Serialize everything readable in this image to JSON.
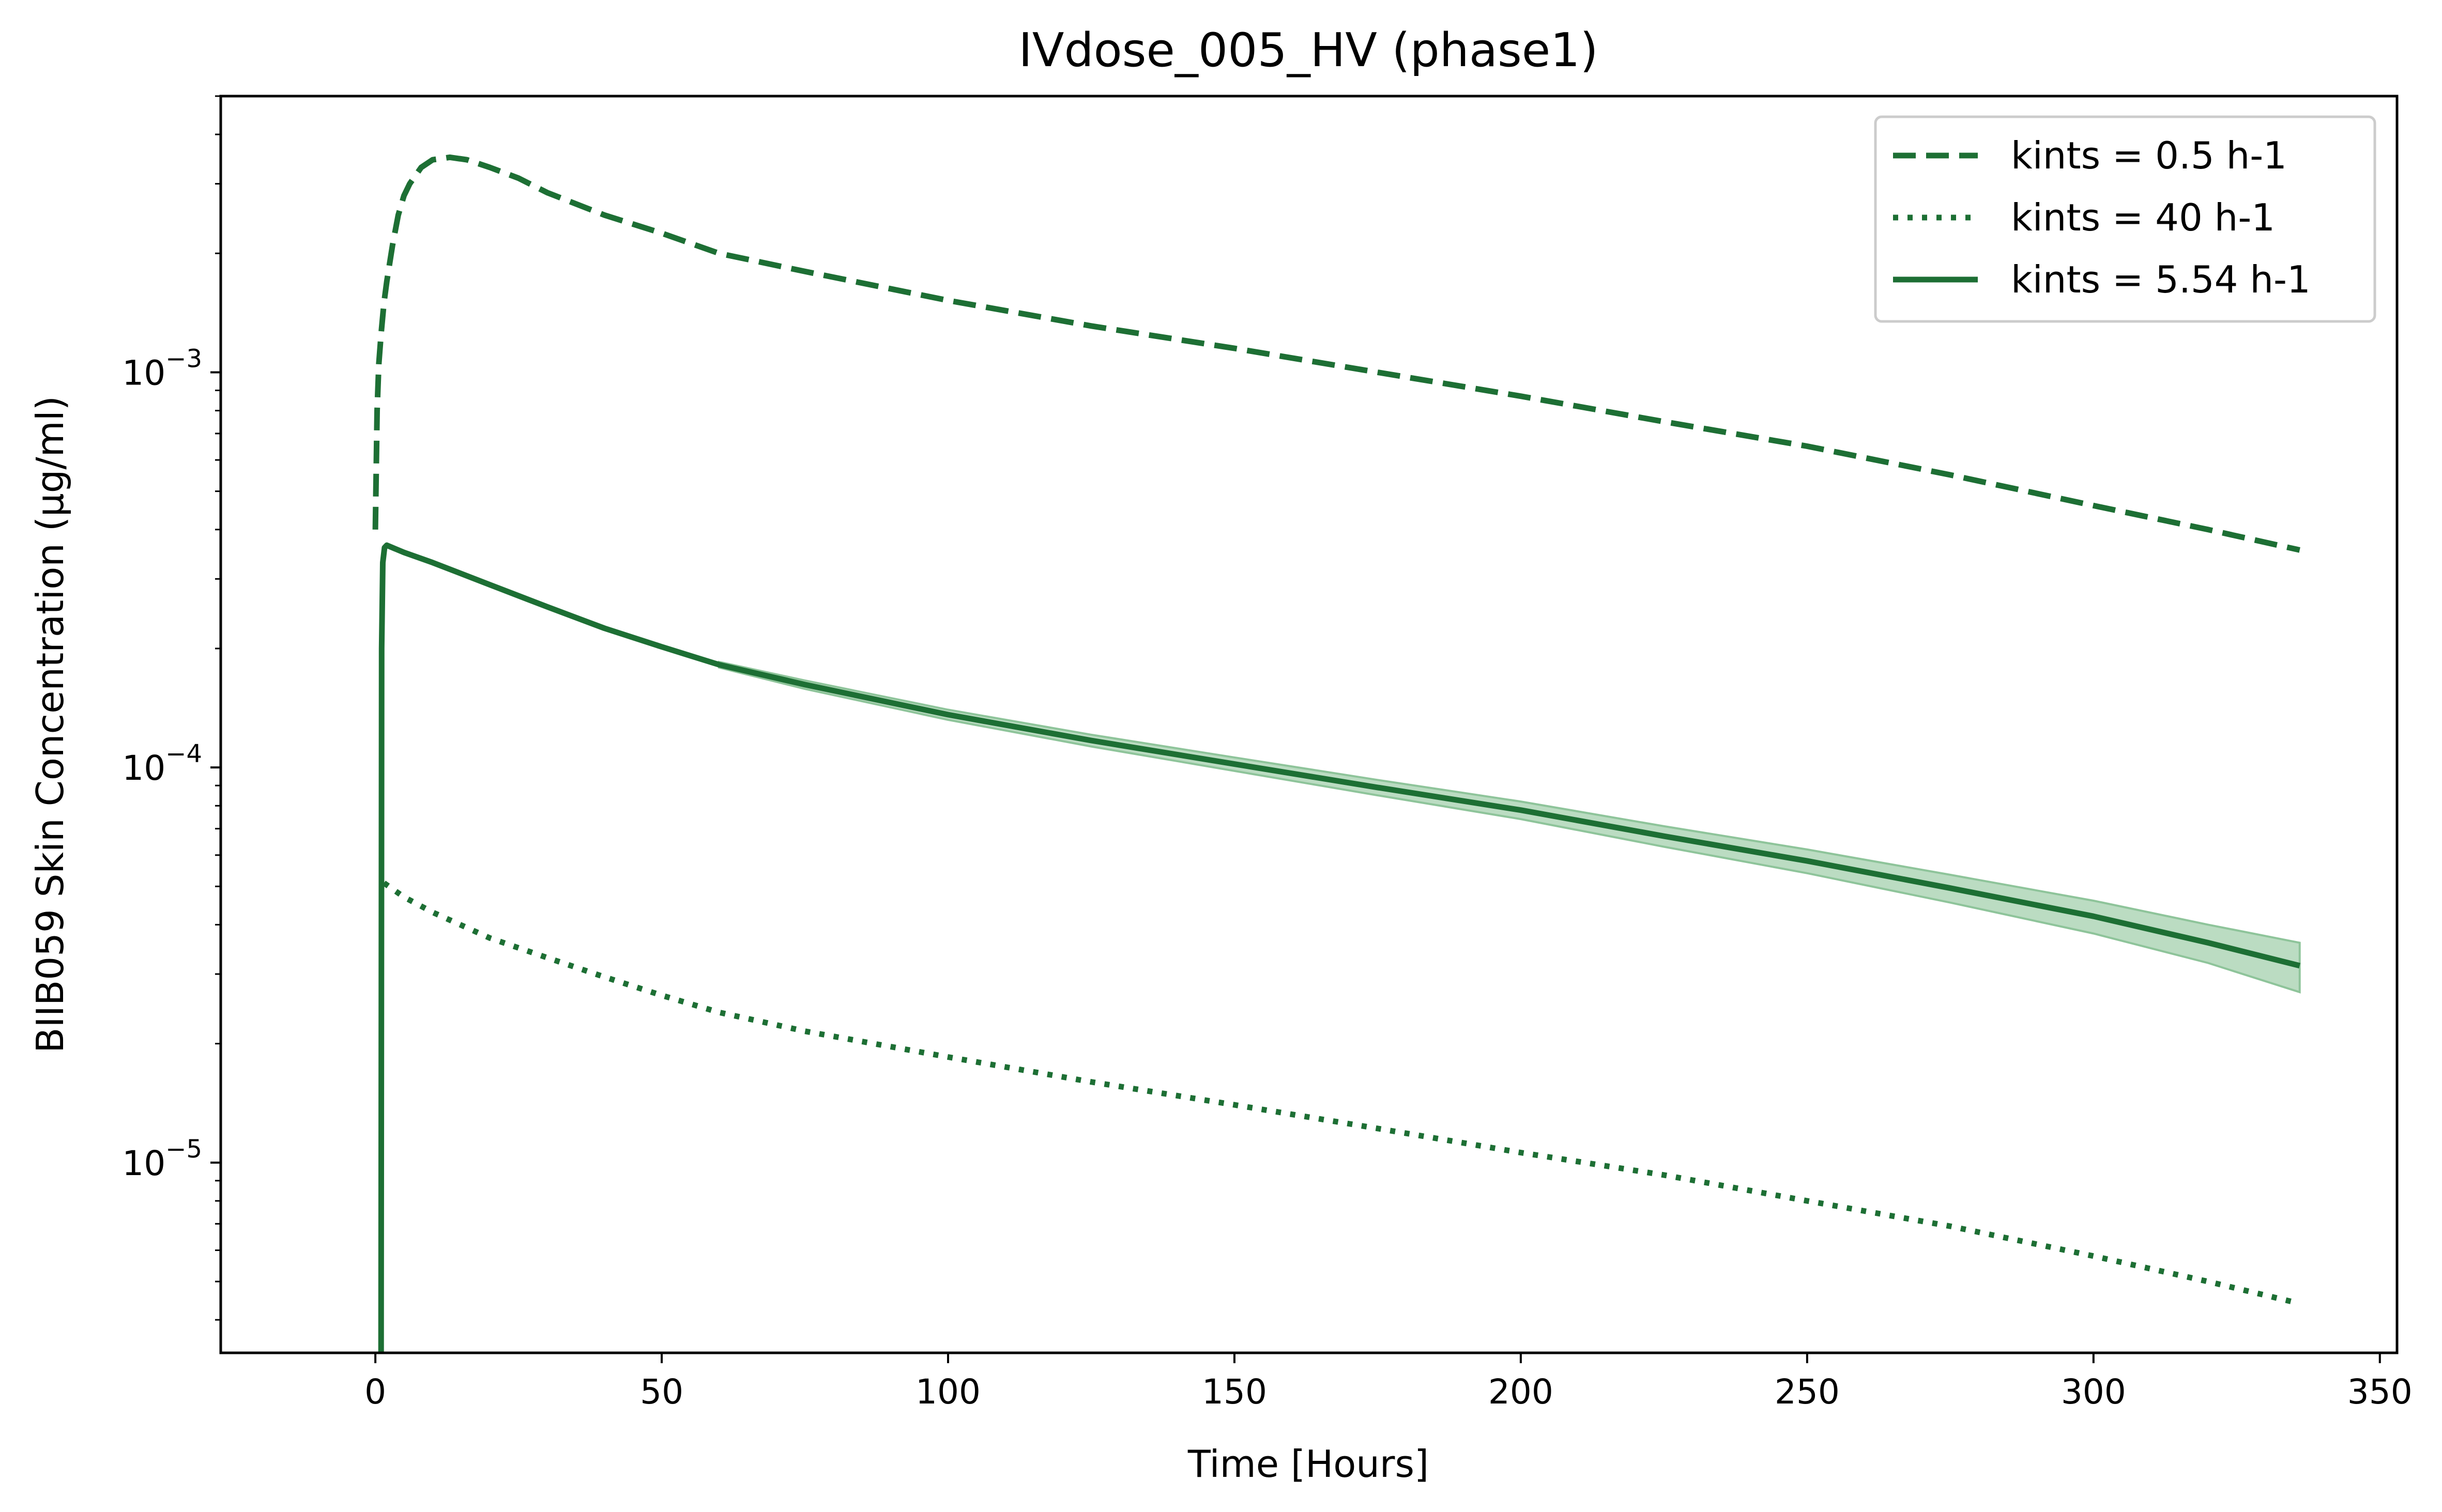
{
  "chart_data": {
    "type": "line",
    "title": "IVdose_005_HV (phase1)",
    "xlabel": "Time [Hours]",
    "ylabel": "BIIB059 Skin Concentration (µg/ml)",
    "xlim": [
      -27,
      353
    ],
    "ylim": [
      3.3e-06,
      0.005
    ],
    "yscale": "log",
    "grid": false,
    "legend_position": "top-right",
    "line_color": "#1d6f34",
    "band_color": "#8ec49a",
    "x_ticks": [
      {
        "value": 0,
        "label": "0"
      },
      {
        "value": 50,
        "label": "50"
      },
      {
        "value": 100,
        "label": "100"
      },
      {
        "value": 150,
        "label": "150"
      },
      {
        "value": 200,
        "label": "200"
      },
      {
        "value": 250,
        "label": "250"
      },
      {
        "value": 300,
        "label": "300"
      },
      {
        "value": 350,
        "label": "350"
      }
    ],
    "y_ticks": [
      {
        "value": 0.001,
        "base": "10",
        "exp": "−3"
      },
      {
        "value": 0.0001,
        "base": "10",
        "exp": "−4"
      },
      {
        "value": 1e-05,
        "base": "10",
        "exp": "−5"
      }
    ],
    "series": [
      {
        "name": "kints = 0.5 h-1",
        "style": "dashed",
        "x": [
          0,
          0.3,
          0.6,
          1,
          1.5,
          2,
          3,
          4,
          5,
          6,
          8,
          10,
          13,
          16,
          20,
          25,
          30,
          40,
          50,
          60,
          75,
          100,
          125,
          150,
          175,
          200,
          225,
          250,
          275,
          300,
          320,
          336
        ],
        "y": [
          0.0004,
          0.0008,
          0.00105,
          0.00125,
          0.0015,
          0.0017,
          0.0021,
          0.0025,
          0.0028,
          0.003,
          0.0033,
          0.00345,
          0.0035,
          0.00345,
          0.0033,
          0.0031,
          0.00285,
          0.0025,
          0.00225,
          0.002,
          0.0018,
          0.00152,
          0.00131,
          0.00115,
          0.001,
          0.00087,
          0.00075,
          0.00065,
          0.00055,
          0.00046,
          0.0004,
          0.000355
        ]
      },
      {
        "name": "kints = 40 h-1",
        "style": "dotted",
        "x": [
          1.5,
          5,
          10,
          20,
          30,
          40,
          50,
          60,
          75,
          100,
          125,
          150,
          175,
          200,
          225,
          250,
          275,
          300,
          320,
          336
        ],
        "y": [
          5.1e-05,
          4.7e-05,
          4.3e-05,
          3.7e-05,
          3.3e-05,
          2.95e-05,
          2.65e-05,
          2.4e-05,
          2.15e-05,
          1.85e-05,
          1.6e-05,
          1.4e-05,
          1.22e-05,
          1.06e-05,
          9.3e-06,
          8e-06,
          6.9e-06,
          5.8e-06,
          5e-06,
          4.4e-06
        ]
      },
      {
        "name": "kints = 5.54 h-1",
        "style": "solid",
        "x": [
          1,
          1.1,
          1.3,
          1.6,
          2,
          5,
          10,
          20,
          30,
          40,
          50,
          60,
          75,
          100,
          125,
          150,
          175,
          200,
          225,
          250,
          275,
          300,
          320,
          336
        ],
        "y": [
          3.3e-06,
          0.0002,
          0.00033,
          0.00036,
          0.000365,
          0.00035,
          0.00033,
          0.00029,
          0.000255,
          0.000225,
          0.000202,
          0.000182,
          0.000162,
          0.000136,
          0.000117,
          0.000102,
          8.9e-05,
          7.8e-05,
          6.7e-05,
          5.8e-05,
          4.95e-05,
          4.2e-05,
          3.6e-05,
          3.15e-05
        ]
      }
    ],
    "band": {
      "series": "kints = 5.54 h-1",
      "x": [
        60,
        75,
        100,
        125,
        150,
        175,
        200,
        225,
        250,
        275,
        300,
        320,
        336
      ],
      "upper": [
        0.000185,
        0.000166,
        0.00014,
        0.000121,
        0.000106,
        9.3e-05,
        8.2e-05,
        7.1e-05,
        6.2e-05,
        5.35e-05,
        4.6e-05,
        4e-05,
        3.6e-05
      ],
      "lower": [
        0.000179,
        0.000158,
        0.000132,
        0.000113,
        9.8e-05,
        8.5e-05,
        7.4e-05,
        6.3e-05,
        5.4e-05,
        4.55e-05,
        3.8e-05,
        3.2e-05,
        2.7e-05
      ]
    }
  }
}
